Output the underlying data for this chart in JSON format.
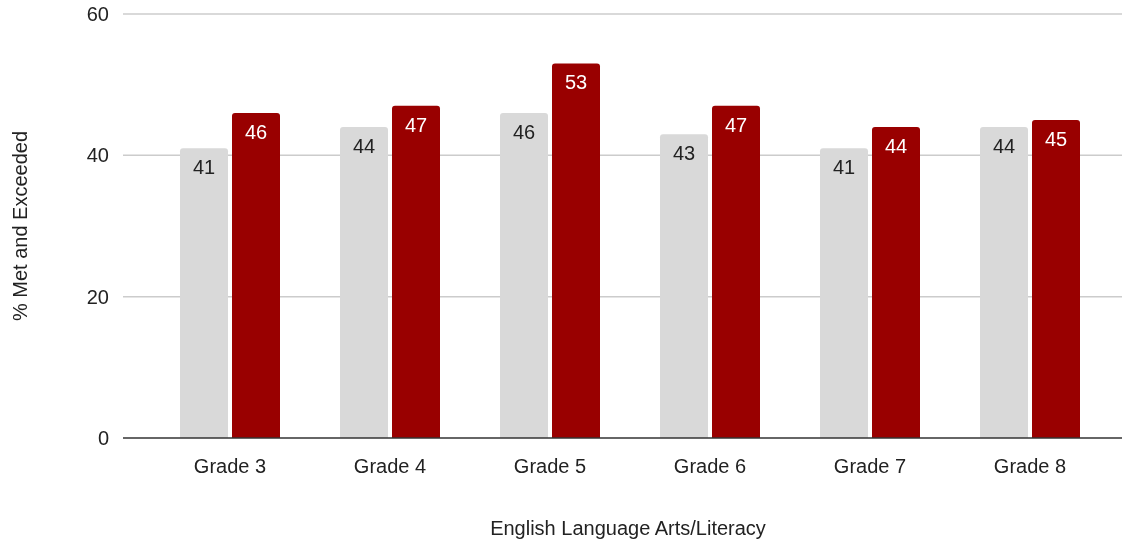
{
  "chart_data": {
    "type": "bar",
    "xlabel": "English Language Arts/Literacy",
    "ylabel": "% Met and Exceeded",
    "categories": [
      "Grade 3",
      "Grade 4",
      "Grade 5",
      "Grade 6",
      "Grade 7",
      "Grade 8"
    ],
    "series": [
      {
        "color": "#d9d9d9",
        "values": [
          41,
          44,
          46,
          43,
          41,
          44
        ]
      },
      {
        "color": "#990000",
        "values": [
          46,
          47,
          53,
          47,
          44,
          45
        ]
      }
    ],
    "ylim": [
      0,
      60
    ],
    "yticks": [
      0,
      20,
      40,
      60
    ],
    "grid": "y",
    "data_labels": true
  }
}
